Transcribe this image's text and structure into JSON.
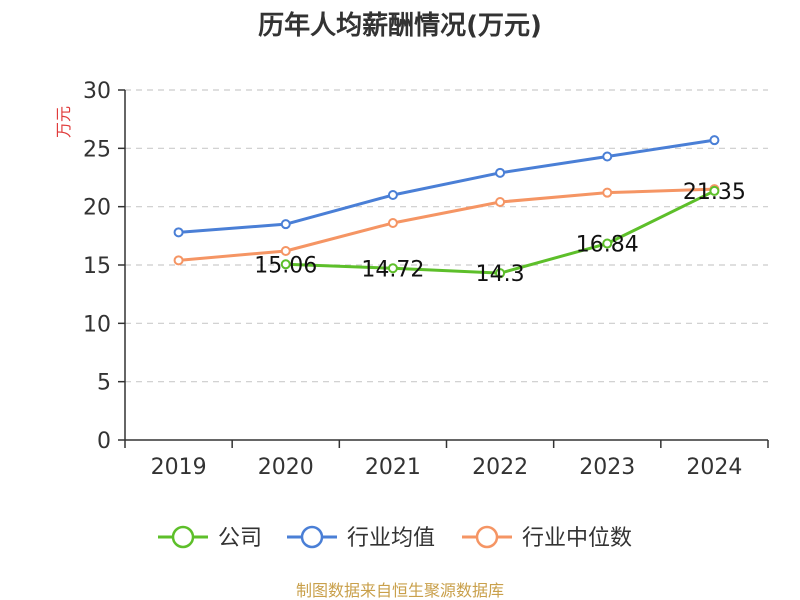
{
  "chart_data": {
    "type": "line",
    "title": "历年人均薪酬情况(万元)",
    "ylabel": "万元",
    "xlabel": "",
    "ylim": [
      0,
      30
    ],
    "yticks": [
      0,
      5,
      10,
      15,
      20,
      25,
      30
    ],
    "categories": [
      "2019",
      "2020",
      "2021",
      "2022",
      "2023",
      "2024"
    ],
    "grid": true,
    "legend_position": "bottom",
    "series": [
      {
        "name": "公司",
        "color": "#5dbf2a",
        "values": [
          null,
          15.06,
          14.72,
          14.3,
          16.84,
          21.35
        ],
        "data_labels": [
          null,
          "15.06",
          "14.72",
          "14.3",
          "16.84",
          "21.35"
        ]
      },
      {
        "name": "行业均值",
        "color": "#4a7fd6",
        "values": [
          17.8,
          18.5,
          21.0,
          22.9,
          24.3,
          25.7
        ]
      },
      {
        "name": "行业中位数",
        "color": "#f59564",
        "values": [
          15.4,
          16.2,
          18.6,
          20.4,
          21.2,
          21.5
        ]
      }
    ]
  },
  "source_note": "制图数据来自恒生聚源数据库",
  "colors": {
    "title": "#333333",
    "ylabel": "#e03b3b",
    "source": "#c9a04b",
    "grid": "#cccccc",
    "axis": "#333333"
  }
}
